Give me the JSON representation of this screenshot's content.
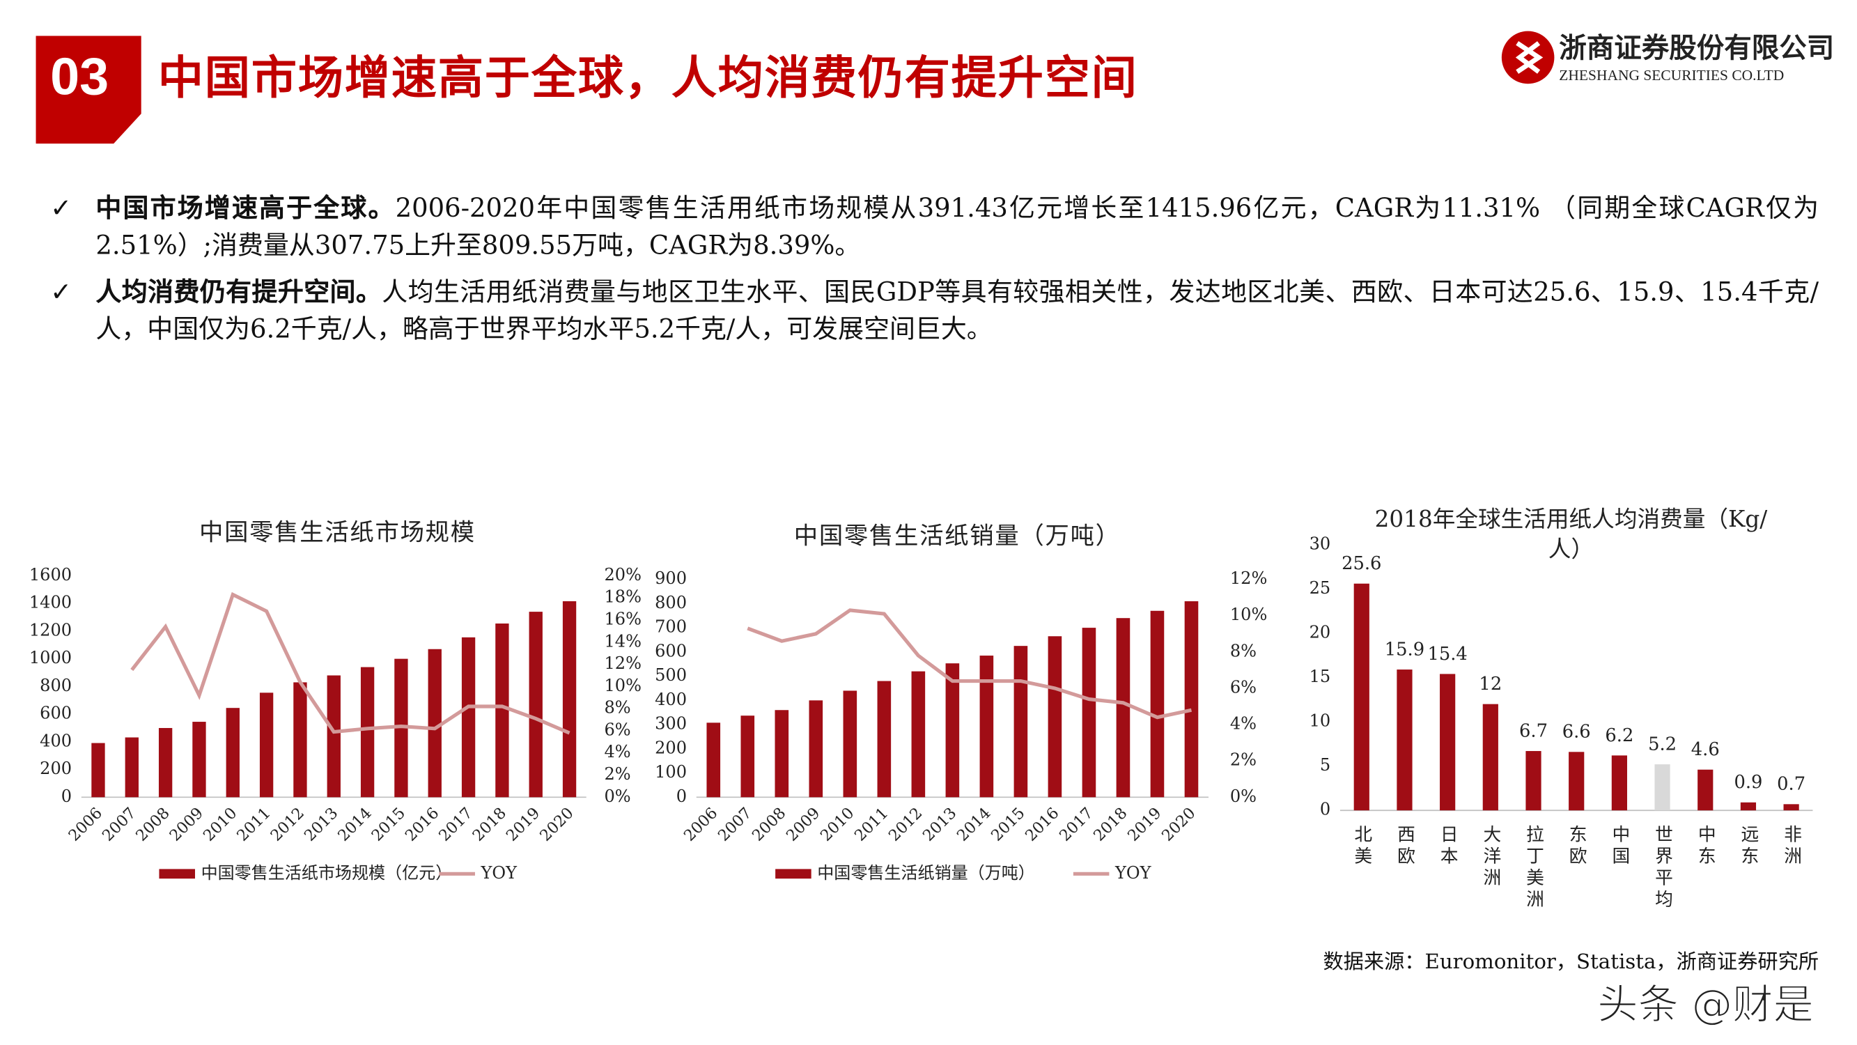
{
  "header": {
    "number": "03",
    "title": "中国市场增速高于全球，人均消费仍有提升空间"
  },
  "logo": {
    "name": "浙商证券股份有限公司",
    "english": "ZHESHANG SECURITIES CO.LTD"
  },
  "bullets": [
    {
      "lead": "中国市场增速高于全球。",
      "text": "2006-2020年中国零售生活用纸市场规模从391.43亿元增长至1415.96亿元，CAGR为11.31% （同期全球CAGR仅为2.51%）;消费量从307.75上升至809.55万吨，CAGR为8.39%。"
    },
    {
      "lead": "人均消费仍有提升空间。",
      "text": "人均生活用纸消费量与地区卫生水平、国民GDP等具有较强相关性，发达地区北美、西欧、日本可达25.6、15.9、15.4千克/人，中国仅为6.2千克/人，略高于世界平均水平5.2千克/人，可发展空间巨大。"
    }
  ],
  "chart_data": [
    {
      "type": "bar",
      "title": "中国零售生活纸市场规模",
      "categories": [
        "2006",
        "2007",
        "2008",
        "2009",
        "2010",
        "2011",
        "2012",
        "2013",
        "2014",
        "2015",
        "2016",
        "2017",
        "2018",
        "2019",
        "2020"
      ],
      "series": [
        {
          "name": "中国零售生活纸市场规模（亿元）",
          "color": "#a00d15",
          "values": [
            391.43,
            432,
            500,
            545,
            645,
            755,
            830,
            880,
            940,
            1000,
            1070,
            1155,
            1255,
            1340,
            1415.96
          ]
        },
        {
          "name": "YOY",
          "color": "#d39a9a",
          "type": "line",
          "axis": "y2",
          "values": [
            null,
            11.5,
            15.4,
            9.2,
            18.3,
            16.8,
            10.4,
            5.9,
            6.2,
            6.4,
            6.2,
            8.2,
            8.2,
            7.1,
            5.8
          ]
        }
      ],
      "ylim": [
        0,
        1600
      ],
      "yticks": [
        0,
        200,
        400,
        600,
        800,
        1000,
        1200,
        1400,
        1600
      ],
      "y2lim": [
        0,
        20
      ],
      "y2ticks": [
        {
          "value": 0,
          "label": "0%"
        },
        {
          "value": 2,
          "label": "2%"
        },
        {
          "value": 4,
          "label": "4%"
        },
        {
          "value": 6,
          "label": "6%"
        },
        {
          "value": 8,
          "label": "8%"
        },
        {
          "value": 10,
          "label": "10%"
        },
        {
          "value": 12,
          "label": "12%"
        },
        {
          "value": 14,
          "label": "14%"
        },
        {
          "value": 16,
          "label": "16%"
        },
        {
          "value": 18,
          "label": "18%"
        },
        {
          "value": 20,
          "label": "20%"
        }
      ],
      "legend": "bottom"
    },
    {
      "type": "bar",
      "title": "中国零售生活纸销量（万吨）",
      "categories": [
        "2006",
        "2007",
        "2008",
        "2009",
        "2010",
        "2011",
        "2012",
        "2013",
        "2014",
        "2015",
        "2016",
        "2017",
        "2018",
        "2019",
        "2020"
      ],
      "series": [
        {
          "name": "中国零售生活纸销量（万吨）",
          "color": "#a00d15",
          "values": [
            307.75,
            337,
            360,
            400,
            440,
            480,
            520,
            553,
            585,
            625,
            665,
            700,
            740,
            770,
            809.55
          ]
        },
        {
          "name": "YOY",
          "color": "#d39a9a",
          "type": "line",
          "axis": "y2",
          "values": [
            null,
            9.3,
            8.6,
            9.0,
            10.3,
            10.1,
            7.8,
            6.4,
            6.4,
            6.4,
            6.0,
            5.4,
            5.2,
            4.4,
            4.8
          ]
        }
      ],
      "ylim": [
        0,
        900
      ],
      "yticks": [
        0,
        100,
        200,
        300,
        400,
        500,
        600,
        700,
        800,
        900
      ],
      "y2lim": [
        0,
        12
      ],
      "y2ticks": [
        {
          "value": 0,
          "label": "0%"
        },
        {
          "value": 2,
          "label": "2%"
        },
        {
          "value": 4,
          "label": "4%"
        },
        {
          "value": 6,
          "label": "6%"
        },
        {
          "value": 8,
          "label": "8%"
        },
        {
          "value": 10,
          "label": "10%"
        },
        {
          "value": 12,
          "label": "12%"
        }
      ],
      "legend": "bottom"
    },
    {
      "type": "bar",
      "title": "2018年全球生活用纸人均消费量（Kg/人）",
      "categories": [
        "北美",
        "西欧",
        "日本",
        "大洋洲",
        "拉丁美洲",
        "东欧",
        "中国",
        "世界平均",
        "中东",
        "远东",
        "非洲"
      ],
      "values": [
        25.6,
        15.9,
        15.4,
        12,
        6.7,
        6.6,
        6.2,
        5.2,
        4.6,
        0.9,
        0.7
      ],
      "colors": [
        "#a00d15",
        "#a00d15",
        "#a00d15",
        "#a00d15",
        "#a00d15",
        "#a00d15",
        "#a00d15",
        "#d9d9d9",
        "#a00d15",
        "#a00d15",
        "#a00d15"
      ],
      "ylim": [
        0,
        30
      ],
      "yticks": [
        0,
        5,
        10,
        15,
        20,
        25,
        30
      ]
    }
  ],
  "source": "数据来源：Euromonitor，Statista，浙商证券研究所",
  "watermark": "头条 @财是"
}
